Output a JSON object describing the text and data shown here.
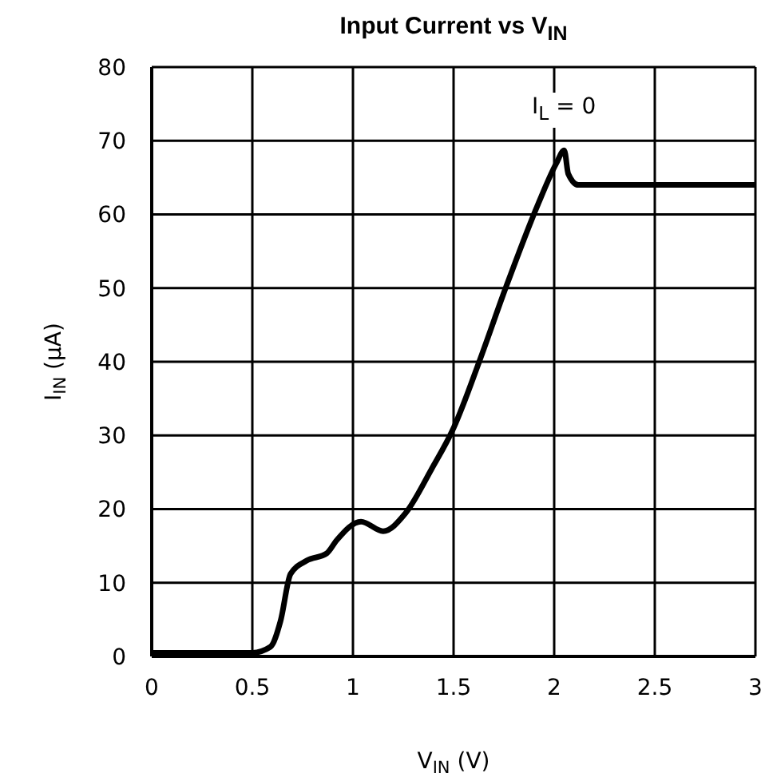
{
  "chart_data": {
    "type": "line",
    "title": "Input Current vs V$_{IN}$",
    "xlabel": "V$_{IN}$  (V)",
    "ylabel": "I$_{IN}$  (μA)",
    "x": [
      0,
      0.5,
      0.59,
      0.64,
      0.69,
      0.77,
      0.87,
      0.92,
      1.04,
      1.15,
      1.26,
      1.39,
      1.5,
      1.63,
      1.76,
      1.92,
      2.01,
      2.05,
      2.07,
      2.12,
      3
    ],
    "series": [
      {
        "color": "#000000",
        "values": [
          0.5,
          0.5,
          1.3,
          4.8,
          11.2,
          13,
          14,
          15.8,
          18.3,
          17,
          19.4,
          25.4,
          31,
          40.2,
          50.1,
          61.4,
          66.9,
          68.7,
          65.5,
          64,
          64
        ]
      }
    ],
    "xlim": [
      0,
      3
    ],
    "xticks": [
      0,
      0.5,
      1,
      1.5,
      2,
      2.5,
      3
    ],
    "ylim": [
      0,
      80
    ],
    "yticks": [
      0,
      10,
      20,
      30,
      40,
      50,
      60,
      70,
      80
    ],
    "grid": true,
    "legend": false,
    "marker": "none",
    "line_style": "solid",
    "annotations": [
      "I$_{L}$ = 0"
    ]
  }
}
